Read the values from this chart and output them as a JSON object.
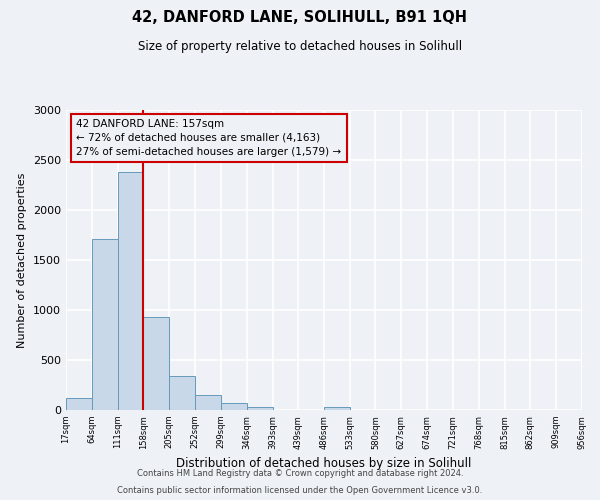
{
  "title": "42, DANFORD LANE, SOLIHULL, B91 1QH",
  "subtitle": "Size of property relative to detached houses in Solihull",
  "xlabel": "Distribution of detached houses by size in Solihull",
  "ylabel": "Number of detached properties",
  "bar_edges": [
    17,
    64,
    111,
    158,
    205,
    252,
    299,
    346,
    393,
    439,
    486,
    533,
    580,
    627,
    674,
    721,
    768,
    815,
    862,
    909,
    956
  ],
  "bar_heights": [
    120,
    1710,
    2380,
    930,
    340,
    155,
    75,
    30,
    0,
    0,
    30,
    0,
    0,
    0,
    0,
    0,
    0,
    0,
    0,
    0
  ],
  "bar_color": "#c8d8e8",
  "bar_edgecolor": "#6699bb",
  "property_line_x": 158,
  "property_line_color": "#cc0000",
  "annotation_title": "42 DANFORD LANE: 157sqm",
  "annotation_line2": "← 72% of detached houses are smaller (4,163)",
  "annotation_line3": "27% of semi-detached houses are larger (1,579) →",
  "annotation_box_color": "#cc0000",
  "ylim": [
    0,
    3000
  ],
  "xlim": [
    17,
    956
  ],
  "yticks": [
    0,
    500,
    1000,
    1500,
    2000,
    2500,
    3000
  ],
  "tick_labels": [
    "17sqm",
    "64sqm",
    "111sqm",
    "158sqm",
    "205sqm",
    "252sqm",
    "299sqm",
    "346sqm",
    "393sqm",
    "439sqm",
    "486sqm",
    "533sqm",
    "580sqm",
    "627sqm",
    "674sqm",
    "721sqm",
    "768sqm",
    "815sqm",
    "862sqm",
    "909sqm",
    "956sqm"
  ],
  "footer_line1": "Contains HM Land Registry data © Crown copyright and database right 2024.",
  "footer_line2": "Contains public sector information licensed under the Open Government Licence v3.0.",
  "background_color": "#eef2f7",
  "grid_color": "#ffffff"
}
